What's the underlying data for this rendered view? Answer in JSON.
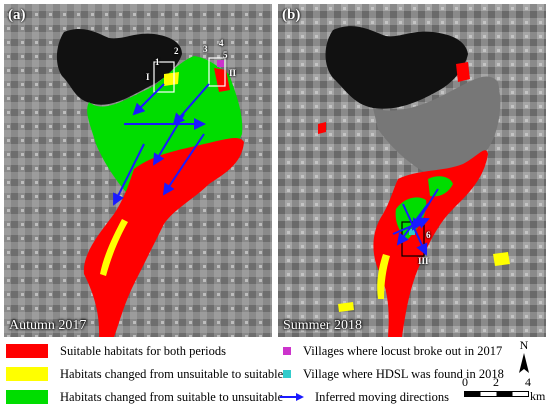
{
  "panels": [
    {
      "tag": "(a)",
      "season": "Autumn 2017"
    },
    {
      "tag": "(b)",
      "season": "Summer 2018"
    }
  ],
  "site_numbers": {
    "a": [
      "1",
      "2",
      "3",
      "4",
      "5"
    ],
    "b": [
      "6"
    ]
  },
  "zone_labels": {
    "a": [
      "I",
      "II"
    ],
    "b": [
      "III"
    ]
  },
  "legend": {
    "left": [
      {
        "label": "Suitable habitats for both periods",
        "color": "#ff0000"
      },
      {
        "label": "Habitats changed from unsuitable to suitable",
        "color": "#ffff00"
      },
      {
        "label": "Habitats changed from suitable to unsuitable",
        "color": "#00dd00"
      }
    ],
    "right": [
      {
        "label": "Villages where locust broke out  in 2017",
        "color": "#cc33cc"
      },
      {
        "label": "Village where HDSL was found in 2018",
        "color": "#33cccc"
      },
      {
        "label": "Inferred moving directions",
        "color": "#1a1aff"
      }
    ]
  },
  "north_label": "N",
  "scale": {
    "ticks": [
      "0",
      "2",
      "4"
    ],
    "unit": "km"
  }
}
